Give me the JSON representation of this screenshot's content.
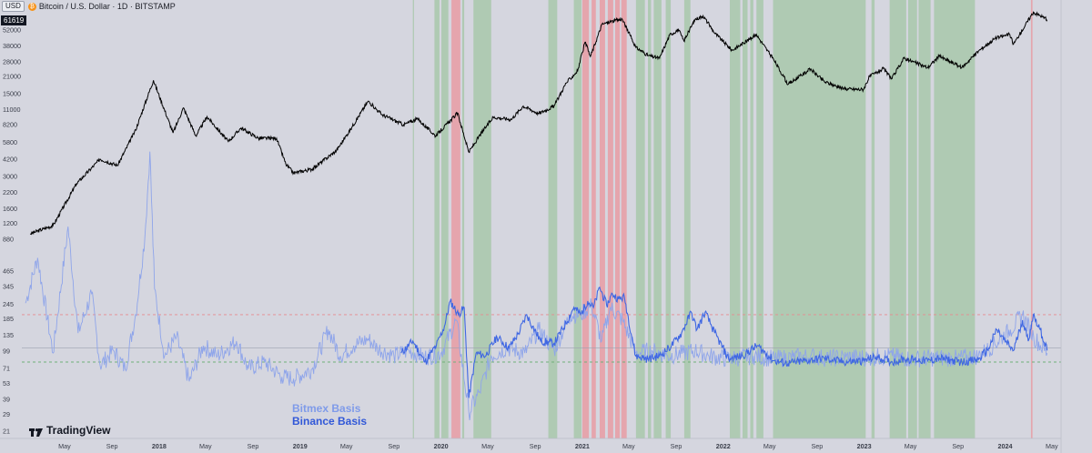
{
  "header": {
    "currency": "USD",
    "title": "Bitcoin / U.S. Dollar · 1D · BITSTAMP",
    "last_price": "61619"
  },
  "legend": {
    "bitmex": "Bitmex Basis",
    "binance": "Binance Basis"
  },
  "branding": "TradingView",
  "colors": {
    "background": "#d5d6df",
    "price": "#000000",
    "bitmex": "#8fa5ea",
    "binance": "#3f67e3",
    "green_band": "#a8c8ab",
    "red_band": "#e7a0a7",
    "upper_threshold": "#e7898f",
    "lower_threshold": "#70b07a"
  },
  "chart_data": {
    "type": "line",
    "title": "Bitcoin / U.S. Dollar · 1D · BITSTAMP",
    "xlabel": "",
    "ylabel": "",
    "x_ticks": [
      "May",
      "Sep",
      "2018",
      "May",
      "Sep",
      "2019",
      "May",
      "Sep",
      "2020",
      "May",
      "Sep",
      "2021",
      "May",
      "Sep",
      "2022",
      "May",
      "Sep",
      "2023",
      "May",
      "Sep",
      "2024",
      "May"
    ],
    "price_panel": {
      "y_scale": "log",
      "y_ticks": [
        52000,
        38000,
        28000,
        21000,
        15000,
        11000,
        8200,
        5800,
        4200,
        3000,
        2200,
        1600,
        1200,
        880
      ],
      "series": [
        {
          "name": "",
          "x": [
            "2017-02-01",
            "2017-04-01",
            "2017-06-01",
            "2017-08-01",
            "2017-09-15",
            "2017-11-01",
            "2017-12-17",
            "2018-02-06",
            "2018-03-05",
            "2018-04-06",
            "2018-05-05",
            "2018-06-29",
            "2018-08-01",
            "2018-09-15",
            "2018-11-01",
            "2018-11-25",
            "2018-12-15",
            "2019-02-01",
            "2019-04-05",
            "2019-05-15",
            "2019-06-26",
            "2019-08-01",
            "2019-09-26",
            "2019-11-01",
            "2019-12-18",
            "2020-02-13",
            "2020-03-13",
            "2020-04-15",
            "2020-05-15",
            "2020-07-01",
            "2020-08-01",
            "2020-09-10",
            "2020-10-20",
            "2020-11-20",
            "2020-12-20",
            "2021-01-08",
            "2021-01-22",
            "2021-02-21",
            "2021-03-13",
            "2021-04-14",
            "2021-05-20",
            "2021-06-22",
            "2021-07-20",
            "2021-08-15",
            "2021-09-07",
            "2021-09-21",
            "2021-10-20",
            "2021-11-10",
            "2021-12-10",
            "2022-01-24",
            "2022-03-28",
            "2022-05-12",
            "2022-06-18",
            "2022-08-15",
            "2022-09-20",
            "2022-11-09",
            "2022-12-30",
            "2023-01-15",
            "2023-02-20",
            "2023-03-13",
            "2023-04-14",
            "2023-06-15",
            "2023-07-14",
            "2023-09-11",
            "2023-10-24",
            "2023-12-05",
            "2024-01-12",
            "2024-01-23",
            "2024-03-14",
            "2024-04-01",
            "2024-04-19"
          ],
          "y": [
            980,
            1150,
            2600,
            4200,
            3700,
            7400,
            19500,
            7000,
            11400,
            6600,
            9600,
            5900,
            7700,
            6300,
            6300,
            3800,
            3200,
            3450,
            4950,
            7800,
            13000,
            10000,
            8200,
            9200,
            6600,
            10300,
            4800,
            7000,
            9500,
            9100,
            11800,
            10200,
            11800,
            18500,
            23500,
            41000,
            31000,
            58000,
            61000,
            64500,
            37000,
            31500,
            30000,
            47000,
            52500,
            42000,
            64000,
            68500,
            49000,
            35000,
            47500,
            29000,
            18000,
            24300,
            19000,
            16500,
            16300,
            21000,
            24500,
            20000,
            30000,
            25000,
            31200,
            25000,
            34500,
            44000,
            48000,
            39500,
            73500,
            69000,
            63500
          ]
        }
      ]
    },
    "basis_panel": {
      "y_scale": "log",
      "y_ticks": [
        465,
        345,
        245,
        185,
        135,
        99,
        71,
        53,
        39,
        29,
        21
      ],
      "upper_threshold": 200,
      "lower_threshold": 80,
      "series": [
        {
          "name": "Bitmex Basis",
          "x": [
            "2017-01-20",
            "2017-02-20",
            "2017-04-01",
            "2017-05-10",
            "2017-06-05",
            "2017-07-10",
            "2017-08-01",
            "2017-09-05",
            "2017-10-05",
            "2017-11-01",
            "2017-11-25",
            "2017-12-08",
            "2017-12-20",
            "2018-01-15",
            "2018-02-15",
            "2018-03-20",
            "2018-04-25",
            "2018-06-01",
            "2018-07-20",
            "2018-08-20",
            "2018-10-01",
            "2018-11-15",
            "2018-12-15",
            "2019-02-01",
            "2019-03-15",
            "2019-04-15",
            "2019-05-20",
            "2019-06-26",
            "2019-07-20",
            "2019-09-01",
            "2019-10-10",
            "2019-11-20",
            "2020-01-01",
            "2020-02-10",
            "2020-03-13",
            "2020-04-10",
            "2020-05-10",
            "2020-06-20",
            "2020-08-05",
            "2020-09-10",
            "2020-10-20",
            "2020-12-01",
            "2020-12-28",
            "2021-01-25",
            "2021-02-20",
            "2021-03-15",
            "2021-04-15",
            "2021-05-20",
            "2021-06-30",
            "2021-08-10",
            "2021-09-20",
            "2021-10-20",
            "2021-11-25",
            "2022-01-10",
            "2022-03-20",
            "2022-05-15",
            "2022-07-01",
            "2022-08-15",
            "2022-10-01",
            "2022-11-15",
            "2023-01-15",
            "2023-03-15",
            "2023-05-01",
            "2023-07-01",
            "2023-09-01",
            "2023-10-24",
            "2023-12-01",
            "2024-01-15",
            "2024-02-15",
            "2024-03-15",
            "2024-04-19"
          ],
          "y": [
            250,
            600,
            95,
            1100,
            140,
            300,
            75,
            100,
            70,
            200,
            900,
            4700,
            330,
            90,
            130,
            55,
            110,
            90,
            120,
            70,
            80,
            60,
            58,
            70,
            150,
            90,
            110,
            125,
            105,
            90,
            100,
            88,
            95,
            180,
            30,
            45,
            90,
            105,
            95,
            150,
            100,
            200,
            200,
            240,
            120,
            230,
            180,
            95,
            100,
            90,
            95,
            100,
            90,
            85,
            90,
            85,
            88,
            90,
            86,
            88,
            87,
            90,
            85,
            87,
            86,
            90,
            110,
            150,
            200,
            130,
            95
          ]
        },
        {
          "name": "Binance Basis",
          "x": [
            "2019-09-20",
            "2019-10-20",
            "2019-11-20",
            "2019-12-20",
            "2020-01-10",
            "2020-01-25",
            "2020-02-15",
            "2020-03-01",
            "2020-03-13",
            "2020-04-01",
            "2020-04-25",
            "2020-05-25",
            "2020-06-25",
            "2020-07-20",
            "2020-08-10",
            "2020-08-25",
            "2020-09-15",
            "2020-10-20",
            "2020-11-20",
            "2020-12-10",
            "2020-12-28",
            "2021-01-15",
            "2021-01-30",
            "2021-02-15",
            "2021-03-05",
            "2021-03-20",
            "2021-04-05",
            "2021-04-20",
            "2021-05-19",
            "2021-06-20",
            "2021-07-20",
            "2021-08-20",
            "2021-09-15",
            "2021-10-10",
            "2021-10-25",
            "2021-11-15",
            "2021-12-10",
            "2022-01-15",
            "2022-02-20",
            "2022-03-30",
            "2022-05-12",
            "2022-06-18",
            "2022-08-15",
            "2022-09-20",
            "2022-11-09",
            "2022-12-30",
            "2023-02-01",
            "2023-03-15",
            "2023-04-15",
            "2023-06-15",
            "2023-07-15",
            "2023-09-11",
            "2023-10-24",
            "2023-11-20",
            "2023-12-10",
            "2024-01-01",
            "2024-01-23",
            "2024-02-15",
            "2024-03-01",
            "2024-03-14",
            "2024-04-01",
            "2024-04-19"
          ],
          "y": [
            95,
            120,
            80,
            110,
            160,
            260,
            200,
            230,
            40,
            95,
            90,
            130,
            105,
            140,
            200,
            160,
            120,
            115,
            170,
            230,
            200,
            260,
            230,
            340,
            240,
            300,
            270,
            280,
            90,
            85,
            90,
            110,
            140,
            210,
            150,
            210,
            140,
            85,
            90,
            110,
            82,
            78,
            83,
            86,
            80,
            82,
            88,
            80,
            85,
            82,
            86,
            80,
            84,
            105,
            150,
            120,
            100,
            180,
            120,
            200,
            150,
            100
          ]
        }
      ]
    },
    "highlight_periods": {
      "green": [
        [
          "2019-10-20",
          "2019-10-23"
        ],
        [
          "2019-12-15",
          "2019-12-28"
        ],
        [
          "2020-01-02",
          "2020-01-20"
        ],
        [
          "2020-02-25",
          "2020-03-01"
        ],
        [
          "2020-03-25",
          "2020-05-10"
        ],
        [
          "2020-10-05",
          "2020-10-28"
        ],
        [
          "2020-12-10",
          "2020-12-30"
        ],
        [
          "2021-05-20",
          "2021-06-12"
        ],
        [
          "2021-06-20",
          "2021-06-28"
        ],
        [
          "2021-07-05",
          "2021-07-25"
        ],
        [
          "2021-08-05",
          "2021-08-18"
        ],
        [
          "2021-09-22",
          "2021-10-08"
        ],
        [
          "2022-01-18",
          "2022-02-14"
        ],
        [
          "2022-02-20",
          "2022-03-05"
        ],
        [
          "2022-03-12",
          "2022-03-20"
        ],
        [
          "2022-03-28",
          "2022-04-15"
        ],
        [
          "2022-05-10",
          "2023-01-05"
        ],
        [
          "2023-01-20",
          "2023-01-28"
        ],
        [
          "2023-03-08",
          "2023-04-20"
        ],
        [
          "2023-04-25",
          "2023-05-18"
        ],
        [
          "2023-05-22",
          "2023-06-22"
        ],
        [
          "2023-07-01",
          "2023-10-15"
        ]
      ],
      "red": [
        [
          "2020-01-28",
          "2020-02-20"
        ],
        [
          "2021-01-01",
          "2021-01-18"
        ],
        [
          "2021-01-25",
          "2021-02-05"
        ],
        [
          "2021-02-15",
          "2021-03-01"
        ],
        [
          "2021-03-08",
          "2021-03-22"
        ],
        [
          "2021-03-27",
          "2021-04-08"
        ],
        [
          "2021-04-12",
          "2021-04-26"
        ],
        [
          "2024-03-08",
          "2024-03-12"
        ]
      ]
    }
  }
}
